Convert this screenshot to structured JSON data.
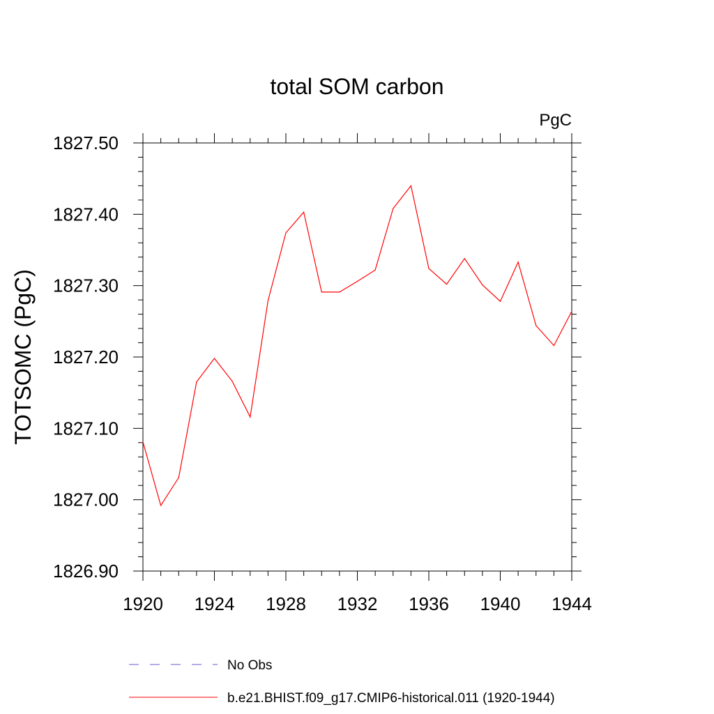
{
  "chart_data": {
    "type": "line",
    "title": "total SOM carbon",
    "units": "PgC",
    "ylabel": "TOTSOMC  (PgC)",
    "xlabel": "",
    "xlim": [
      1920,
      1944
    ],
    "ylim": [
      1826.9,
      1827.5
    ],
    "xticks": [
      1920,
      1924,
      1928,
      1932,
      1936,
      1940,
      1944
    ],
    "yticks": [
      "1826.90",
      "1827.00",
      "1827.10",
      "1827.20",
      "1827.30",
      "1827.40",
      "1827.50"
    ],
    "grid": false,
    "series": [
      {
        "name": "b.e21.BHIST.f09_g17.CMIP6-historical.011 (1920-1944)",
        "color": "#ff0000",
        "x": [
          1920,
          1921,
          1922,
          1923,
          1924,
          1925,
          1926,
          1927,
          1928,
          1929,
          1930,
          1931,
          1932,
          1933,
          1934,
          1935,
          1936,
          1937,
          1938,
          1939,
          1940,
          1941,
          1942,
          1943,
          1944
        ],
        "values": [
          1827.081,
          1826.992,
          1827.031,
          1827.165,
          1827.198,
          1827.166,
          1827.116,
          1827.279,
          1827.374,
          1827.403,
          1827.291,
          1827.291,
          1827.306,
          1827.322,
          1827.408,
          1827.44,
          1827.324,
          1827.302,
          1827.338,
          1827.301,
          1827.278,
          1827.333,
          1827.244,
          1827.216,
          1827.264
        ]
      }
    ],
    "legend": [
      {
        "label": "No Obs",
        "style": "dashed",
        "color": "#6a5acd"
      },
      {
        "label": "b.e21.BHIST.f09_g17.CMIP6-historical.011 (1920-1944)",
        "style": "solid",
        "color": "#ff0000"
      }
    ],
    "legend_position": "bottom"
  }
}
